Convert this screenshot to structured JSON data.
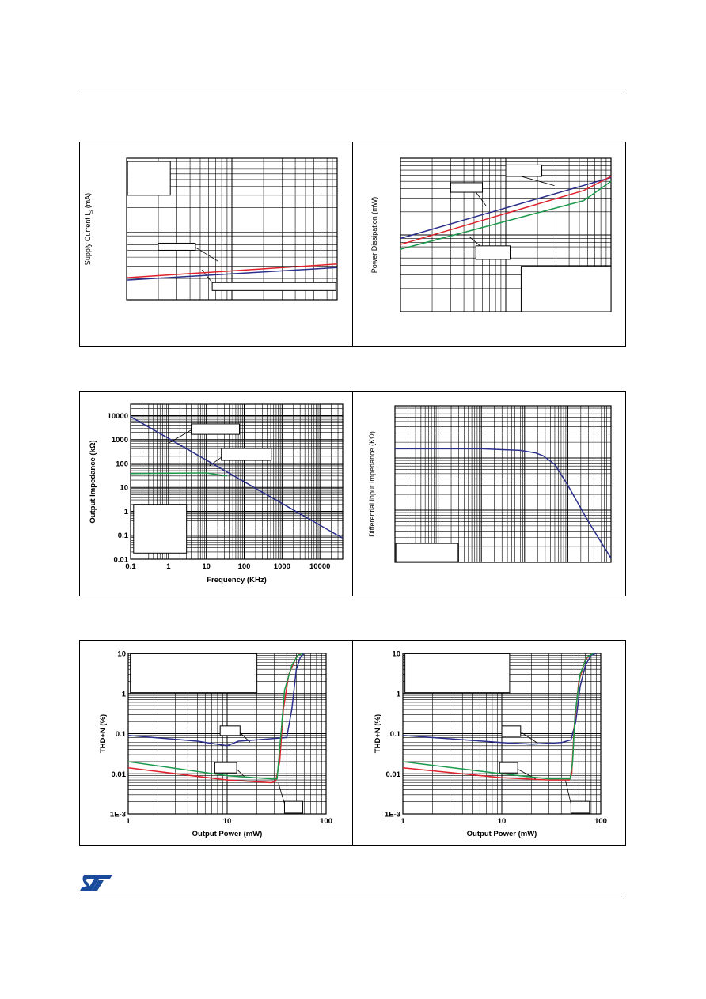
{
  "colors": {
    "blue": "#2a2f8a",
    "red": "#e0212b",
    "green": "#1b9a4c",
    "grid": "#000000"
  },
  "logo": {
    "name": "st-logo-icon",
    "color": "#1a4a9c"
  },
  "chart_data": [
    {
      "id": "supply-current",
      "type": "line",
      "title": "",
      "xlabel": "",
      "ylabel": "Supply Current I",
      "ylabel_sub": "S",
      "ylabel_unit": " (mA)",
      "xscale": "log",
      "xlim": [
        1,
        100
      ],
      "yscale": "log",
      "ylim": [
        1,
        100
      ],
      "xticks": [],
      "yticks": [],
      "grid": true,
      "series": [
        {
          "color": "red",
          "x": [
            1,
            100
          ],
          "y": [
            2.05,
            3.2
          ]
        },
        {
          "color": "blue",
          "x": [
            1,
            100
          ],
          "y": [
            1.9,
            2.85
          ]
        }
      ],
      "boxes": [
        {
          "x": [
            1.02,
            2.6
          ],
          "y": [
            30,
            90
          ]
        },
        {
          "x": [
            2.0,
            4.5
          ],
          "y": [
            5.0,
            6.3
          ]
        },
        {
          "x": [
            6.5,
            97
          ],
          "y": [
            1.35,
            1.75
          ]
        }
      ],
      "leaders": [
        {
          "x": [
            4.5,
            7.4
          ],
          "y": [
            5.5,
            3.5
          ]
        },
        {
          "x": [
            6.5,
            5.2
          ],
          "y": [
            1.75,
            2.65
          ]
        }
      ]
    },
    {
      "id": "power-dissipation",
      "type": "line",
      "title": "",
      "xlabel": "",
      "ylabel": "Power Dissipation (mW)",
      "xscale": "log",
      "xlim": [
        1,
        100
      ],
      "yscale": "log",
      "ylim": [
        1,
        100
      ],
      "xticks": [],
      "yticks": [],
      "grid": true,
      "series": [
        {
          "color": "blue",
          "x": [
            1,
            100
          ],
          "y": [
            9.0,
            56
          ]
        },
        {
          "color": "red",
          "x": [
            1,
            55,
            100
          ],
          "y": [
            7.5,
            38,
            58
          ]
        },
        {
          "color": "green",
          "x": [
            1,
            55,
            100
          ],
          "y": [
            6.5,
            28,
            50
          ]
        }
      ],
      "boxes": [
        {
          "x": [
            10,
            22
          ],
          "y": [
            58,
            82
          ]
        },
        {
          "x": [
            3.0,
            6.0
          ],
          "y": [
            36,
            48
          ]
        },
        {
          "x": [
            5.2,
            11
          ],
          "y": [
            4.8,
            7.2
          ]
        },
        {
          "x": [
            14,
            100
          ],
          "y": [
            1.0,
            3.9
          ]
        }
      ],
      "leaders": [
        {
          "x": [
            14,
            29
          ],
          "y": [
            58,
            44
          ]
        },
        {
          "x": [
            5.2,
            6.5
          ],
          "y": [
            36,
            24
          ]
        },
        {
          "x": [
            5.7,
            4.5
          ],
          "y": [
            7.2,
            9.5
          ]
        }
      ]
    },
    {
      "id": "output-impedance",
      "type": "line",
      "title": "",
      "xlabel": "Frequency (KHz)",
      "ylabel": "Output Impedance (kΩ)",
      "xscale": "log",
      "xlim": [
        0.1,
        40000
      ],
      "yscale": "log",
      "ylim": [
        0.01,
        30000
      ],
      "xticks": [
        0.1,
        1,
        10,
        100,
        1000,
        10000
      ],
      "xtick_labels": [
        "0.1",
        "1",
        "10",
        "100",
        "1000",
        "10000"
      ],
      "yticks": [
        0.01,
        0.1,
        1,
        10,
        100,
        1000,
        10000
      ],
      "ytick_labels": [
        "0.01",
        "0.1",
        "1",
        "10",
        "100",
        "1000",
        "10000"
      ],
      "grid": true,
      "series": [
        {
          "color": "blue",
          "x": [
            0.1,
            40000
          ],
          "y": [
            9000,
            0.075
          ]
        },
        {
          "color": "green",
          "x": [
            0.1,
            10,
            35
          ],
          "y": [
            38,
            40,
            30
          ]
        }
      ],
      "boxes": [
        {
          "x": [
            4,
            75
          ],
          "y": [
            1650,
            4500
          ]
        },
        {
          "x": [
            25,
            520
          ],
          "y": [
            135,
            420
          ]
        },
        {
          "x": [
            0.12,
            3.0
          ],
          "y": [
            0.018,
            1.9
          ]
        }
      ],
      "leaders": [
        {
          "x": [
            4,
            1.0
          ],
          "y": [
            2500,
            700
          ]
        },
        {
          "x": [
            25,
            12
          ],
          "y": [
            180,
            80
          ]
        }
      ]
    },
    {
      "id": "differential-input-impedance",
      "type": "line",
      "title": "",
      "xlabel": "",
      "ylabel": "Differential Input Impedance (KΩ)",
      "xscale": "log",
      "xlim": [
        1,
        100000
      ],
      "yscale": "log",
      "ylim": [
        1,
        1000
      ],
      "xticks": [],
      "yticks": [],
      "grid": true,
      "series": [
        {
          "color": "blue",
          "x": [
            1,
            100,
            800,
            1800,
            2700,
            5000,
            10000,
            30000,
            100000
          ],
          "y": [
            150,
            150,
            140,
            125,
            110,
            75,
            30,
            6,
            1.2
          ]
        }
      ],
      "boxes": [
        {
          "x": [
            1.05,
            29
          ],
          "y": [
            1.03,
            2.3
          ]
        }
      ],
      "leaders": []
    },
    {
      "id": "thd-vs-power-a",
      "type": "line",
      "title": "",
      "xlabel": "Output Power (mW)",
      "ylabel": "THD+N (%)",
      "xscale": "log",
      "xlim": [
        1,
        100
      ],
      "yscale": "log",
      "ylim": [
        0.001,
        10
      ],
      "xticks": [
        1,
        10,
        100
      ],
      "xtick_labels": [
        "1",
        "10",
        "100"
      ],
      "yticks": [
        0.001,
        0.01,
        0.1,
        1,
        10
      ],
      "ytick_labels": [
        "1E-3",
        "0.01",
        "0.1",
        "1",
        "10"
      ],
      "grid": true,
      "series": [
        {
          "color": "blue",
          "x": [
            1,
            5,
            10,
            13,
            20,
            40,
            45,
            50,
            55,
            60
          ],
          "y": [
            0.09,
            0.065,
            0.05,
            0.065,
            0.07,
            0.08,
            0.4,
            4,
            8,
            10
          ]
        },
        {
          "color": "red",
          "x": [
            1,
            10,
            28,
            31,
            34,
            37,
            42,
            50,
            55
          ],
          "y": [
            0.014,
            0.007,
            0.006,
            0.0065,
            0.02,
            0.4,
            3,
            8,
            10
          ]
        },
        {
          "color": "green",
          "x": [
            1,
            10,
            28,
            32,
            35,
            38,
            45,
            52,
            58
          ],
          "y": [
            0.02,
            0.009,
            0.0075,
            0.0075,
            0.1,
            1.2,
            5,
            9,
            10
          ]
        }
      ],
      "boxes": [
        {
          "x": [
            1.05,
            20
          ],
          "y": [
            1.05,
            9.8
          ]
        },
        {
          "x": [
            8.5,
            13.5
          ],
          "y": [
            0.09,
            0.155
          ]
        },
        {
          "x": [
            7.5,
            12.5
          ],
          "y": [
            0.0105,
            0.019
          ]
        },
        {
          "x": [
            38,
            58
          ],
          "y": [
            0.00105,
            0.00205
          ]
        }
      ],
      "leaders": [
        {
          "x": [
            13.5,
            17
          ],
          "y": [
            0.105,
            0.062
          ]
        },
        {
          "x": [
            12.5,
            15.5
          ],
          "y": [
            0.013,
            0.0078
          ]
        },
        {
          "x": [
            38,
            33
          ],
          "y": [
            0.0018,
            0.0058
          ]
        }
      ]
    },
    {
      "id": "thd-vs-power-b",
      "type": "line",
      "title": "",
      "xlabel": "Output Power (mW)",
      "ylabel": "THD+N (%)",
      "xscale": "log",
      "xlim": [
        1,
        100
      ],
      "yscale": "log",
      "ylim": [
        0.001,
        10
      ],
      "xticks": [
        1,
        10,
        100
      ],
      "xtick_labels": [
        "1",
        "10",
        "100"
      ],
      "yticks": [
        0.001,
        0.01,
        0.1,
        1,
        10
      ],
      "ytick_labels": [
        "1E-3",
        "0.01",
        "0.1",
        "1",
        "10"
      ],
      "grid": true,
      "series": [
        {
          "color": "blue",
          "x": [
            1,
            10,
            20,
            40,
            50,
            56,
            62,
            70,
            80,
            90
          ],
          "y": [
            0.09,
            0.06,
            0.055,
            0.06,
            0.07,
            0.2,
            1.5,
            5,
            9,
            10
          ]
        },
        {
          "color": "red",
          "x": [
            1,
            10,
            30,
            48,
            51,
            54,
            60,
            70,
            82
          ],
          "y": [
            0.014,
            0.008,
            0.007,
            0.007,
            0.01,
            0.15,
            2,
            7,
            10
          ]
        },
        {
          "color": "green",
          "x": [
            1,
            10,
            30,
            49,
            52,
            55,
            62,
            72,
            84
          ],
          "y": [
            0.02,
            0.01,
            0.0075,
            0.0075,
            0.02,
            0.3,
            3,
            8,
            10
          ]
        }
      ],
      "boxes": [
        {
          "x": [
            1.05,
            12
          ],
          "y": [
            1.05,
            9.8
          ]
        },
        {
          "x": [
            10,
            15.5
          ],
          "y": [
            0.085,
            0.155
          ]
        },
        {
          "x": [
            9.5,
            14.5
          ],
          "y": [
            0.0105,
            0.019
          ]
        },
        {
          "x": [
            50,
            77
          ],
          "y": [
            0.00105,
            0.00205
          ]
        }
      ],
      "leaders": [
        {
          "x": [
            15.5,
            23
          ],
          "y": [
            0.11,
            0.058
          ]
        },
        {
          "x": [
            14.5,
            22
          ],
          "y": [
            0.013,
            0.0075
          ]
        },
        {
          "x": [
            50,
            44
          ],
          "y": [
            0.0018,
            0.0068
          ]
        }
      ]
    }
  ]
}
